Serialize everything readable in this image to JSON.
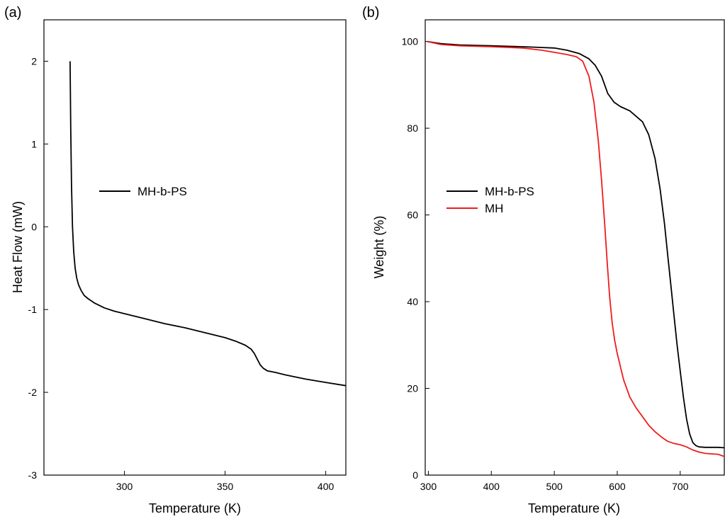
{
  "chart_data": [
    {
      "type": "line",
      "panel_label": "(a)",
      "xlabel": "Temperature (K)",
      "ylabel": "Heat Flow (mW)",
      "xlim": [
        260,
        410
      ],
      "ylim": [
        -3,
        2.5
      ],
      "xticks": [
        300,
        350,
        400
      ],
      "yticks": [
        -3,
        -2,
        -1,
        0,
        1,
        2
      ],
      "grid": false,
      "legend": "center-left",
      "series": [
        {
          "name": "MH-b-PS",
          "color": "#000000",
          "x": [
            273,
            273.3,
            273.7,
            274.2,
            274.8,
            275.5,
            276.3,
            277.2,
            278.5,
            280,
            282,
            285,
            290,
            295,
            300,
            310,
            320,
            330,
            340,
            350,
            355,
            360,
            363,
            364.5,
            366,
            367.5,
            369,
            371,
            375,
            380,
            390,
            400,
            410
          ],
          "y": [
            2.0,
            1.2,
            0.5,
            0.0,
            -0.3,
            -0.5,
            -0.62,
            -0.7,
            -0.77,
            -0.83,
            -0.87,
            -0.92,
            -0.98,
            -1.02,
            -1.05,
            -1.11,
            -1.17,
            -1.22,
            -1.28,
            -1.34,
            -1.38,
            -1.43,
            -1.48,
            -1.53,
            -1.6,
            -1.67,
            -1.71,
            -1.74,
            -1.76,
            -1.79,
            -1.84,
            -1.88,
            -1.92
          ]
        }
      ]
    },
    {
      "type": "line",
      "panel_label": "(b)",
      "xlabel": "Temperature (K)",
      "ylabel": "Weight (%)",
      "xlim": [
        295,
        770
      ],
      "ylim": [
        0,
        105
      ],
      "xticks": [
        300,
        400,
        500,
        600,
        700
      ],
      "yticks": [
        0,
        20,
        40,
        60,
        80,
        100
      ],
      "grid": false,
      "legend": "center-left",
      "series": [
        {
          "name": "MH-b-PS",
          "color": "#000000",
          "x": [
            298,
            320,
            350,
            400,
            450,
            500,
            520,
            540,
            555,
            565,
            575,
            585,
            595,
            605,
            620,
            640,
            650,
            660,
            668,
            675,
            680,
            685,
            690,
            695,
            700,
            705,
            710,
            715,
            720,
            725,
            730,
            740,
            760,
            770
          ],
          "y": [
            100,
            99.5,
            99.2,
            99.0,
            98.8,
            98.5,
            98.0,
            97.2,
            96.0,
            94.5,
            92.0,
            88.0,
            86.0,
            85.0,
            84.0,
            81.5,
            78.5,
            73.0,
            66.0,
            58.0,
            51.0,
            44.0,
            37.0,
            30.0,
            24.0,
            18.0,
            13.0,
            9.5,
            7.5,
            6.8,
            6.5,
            6.4,
            6.4,
            6.3
          ]
        },
        {
          "name": "MH",
          "color": "#ee1c1c",
          "x": [
            298,
            320,
            350,
            400,
            450,
            480,
            500,
            520,
            535,
            545,
            555,
            563,
            570,
            575,
            580,
            584,
            588,
            592,
            596,
            600,
            610,
            620,
            630,
            640,
            650,
            660,
            670,
            680,
            690,
            700,
            710,
            720,
            730,
            740,
            750,
            760,
            770
          ],
          "y": [
            100,
            99.3,
            99.0,
            98.8,
            98.5,
            98.0,
            97.5,
            97.0,
            96.5,
            95.5,
            92.0,
            86.0,
            77.0,
            68.0,
            58.0,
            49.0,
            41.0,
            35.0,
            31.0,
            28.0,
            22.0,
            18.0,
            15.5,
            13.5,
            11.5,
            10.0,
            8.8,
            7.8,
            7.3,
            7.0,
            6.5,
            5.8,
            5.3,
            5.0,
            4.9,
            4.8,
            4.3
          ]
        }
      ]
    }
  ]
}
